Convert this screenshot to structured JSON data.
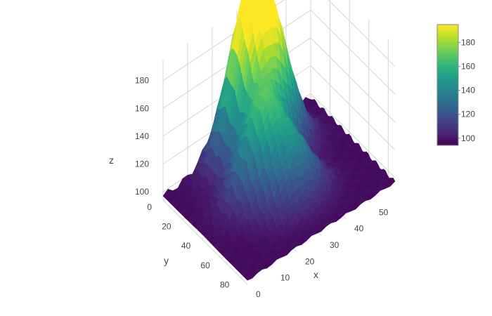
{
  "chart_data": {
    "type": "surface",
    "title": "",
    "colorscale": "viridis",
    "colorscale_stops": [
      "#440154",
      "#482878",
      "#3e4989",
      "#31688e",
      "#26828e",
      "#1f9e89",
      "#35b779",
      "#6ece58",
      "#b5de2b",
      "#fde725"
    ],
    "x_axis": {
      "label": "x",
      "ticks": [
        "0",
        "10",
        "20",
        "30",
        "40",
        "50"
      ],
      "range": [
        0,
        60
      ]
    },
    "y_axis": {
      "label": "y",
      "ticks": [
        "0",
        "20",
        "40",
        "60",
        "80"
      ],
      "range": [
        0,
        87
      ]
    },
    "z_axis": {
      "label": "z",
      "ticks": [
        "100",
        "120",
        "140",
        "160",
        "180"
      ],
      "range": [
        94,
        195
      ]
    },
    "colorbar": {
      "ticks": [
        "100",
        "120",
        "140",
        "160",
        "180"
      ],
      "range": [
        94,
        195
      ]
    },
    "grid": true,
    "peaks": [
      {
        "x": 30,
        "y": 10,
        "z": 195
      },
      {
        "x": 36,
        "y": 22,
        "z": 170
      },
      {
        "x": 24,
        "y": 40,
        "z": 158
      },
      {
        "x": 30,
        "y": 58,
        "z": 138
      }
    ]
  }
}
